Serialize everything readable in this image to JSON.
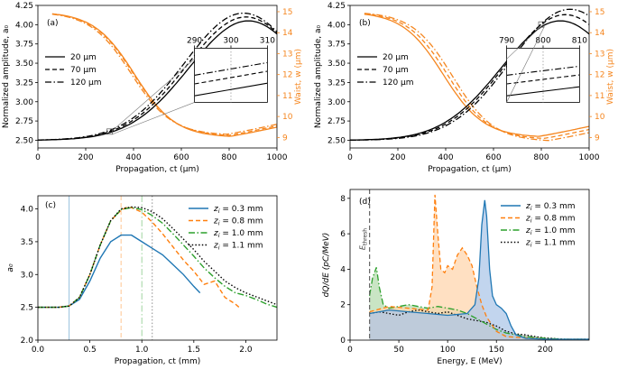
{
  "colors": {
    "black": "#000000",
    "orange": "#f5861f",
    "blue": "#1f77b4",
    "orange_c": "#ff7f0e",
    "green": "#2ca02c",
    "grey": "#555555",
    "fill_blue": "#aec7e8",
    "fill_orange": "#ffd5ad",
    "fill_green": "#b7dcb0",
    "fill_black": "#bbbbbb"
  },
  "chart_data": [
    {
      "id": "a",
      "panel_label": "(a)",
      "type": "line",
      "xlabel": "Propagation, ct (μm)",
      "ylabel_left": "Normalized amplitude, a₀",
      "ylabel_right": "Waist, w (μm)",
      "xlim": [
        0,
        1000
      ],
      "ylim_left": [
        2.4,
        4.25
      ],
      "ylim_right": [
        8.5,
        15.3
      ],
      "xticks": [
        "0",
        "200",
        "400",
        "600",
        "800",
        "1000"
      ],
      "yticks_left": [
        "2.50",
        "2.75",
        "3.00",
        "3.25",
        "3.50",
        "3.75",
        "4.00",
        "4.25"
      ],
      "yticks_right": [
        "9",
        "10",
        "11",
        "12",
        "13",
        "14",
        "15"
      ],
      "legend": [
        "20 μm",
        "70 μm",
        "120 μm"
      ],
      "legend_styles": [
        "solid",
        "dashed",
        "dashdot"
      ],
      "amplitude_params": {
        "start": 2.5,
        "peaks": [
          4.05,
          4.1,
          4.15
        ],
        "peak_x": [
          880,
          870,
          860
        ],
        "rise_width": 350
      },
      "waist_params": {
        "start": 15.0,
        "mins": [
          9.0,
          9.05,
          9.1
        ],
        "min_x": [
          805,
          800,
          790
        ],
        "width": 260
      },
      "inset": {
        "xlim": [
          290,
          310
        ],
        "xticks": [
          "290",
          "300",
          "310"
        ],
        "mark_x": 300
      }
    },
    {
      "id": "b",
      "panel_label": "(b)",
      "type": "line",
      "xlabel": "Propagation, ct (μm)",
      "ylabel_left": "Normalized amplitude, a₀",
      "ylabel_right": "Waist, w (μm)",
      "xlim": [
        0,
        1000
      ],
      "ylim_left": [
        2.4,
        4.25
      ],
      "ylim_right": [
        8.5,
        15.3
      ],
      "xticks": [
        "0",
        "200",
        "400",
        "600",
        "800",
        "1000"
      ],
      "yticks_left": [
        "2.50",
        "2.75",
        "3.00",
        "3.25",
        "3.50",
        "3.75",
        "4.00",
        "4.25"
      ],
      "yticks_right": [
        "9",
        "10",
        "11",
        "12",
        "13",
        "14",
        "15"
      ],
      "legend": [
        "20 μm",
        "70 μm",
        "120 μm"
      ],
      "legend_styles": [
        "solid",
        "dashed",
        "dashdot"
      ],
      "amplitude_params": {
        "start": 2.5,
        "peaks": [
          4.05,
          4.13,
          4.2
        ],
        "peak_x": [
          880,
          900,
          920
        ],
        "rise_width": 350
      },
      "waist_params": {
        "start": 15.0,
        "mins": [
          9.0,
          8.9,
          8.8
        ],
        "min_x": [
          790,
          810,
          830
        ],
        "width": 260
      },
      "inset": {
        "xlim": [
          790,
          810
        ],
        "xticks": [
          "790",
          "800",
          "810"
        ],
        "mark_x": 800
      }
    },
    {
      "id": "c",
      "panel_label": "(c)",
      "type": "line",
      "xlabel": "Propagation, ct (mm)",
      "ylabel": "a₀",
      "xlim": [
        0,
        2.3
      ],
      "ylim": [
        2.0,
        4.2
      ],
      "xticks": [
        "0.0",
        "0.5",
        "1.0",
        "1.5",
        "2.0"
      ],
      "yticks": [
        "2.0",
        "2.5",
        "3.0",
        "3.5",
        "4.0"
      ],
      "legend": [
        "z_i = 0.3 mm",
        "z_i = 0.8 mm",
        "z_i = 1.0 mm",
        "z_i = 1.1 mm"
      ],
      "vlines": [
        0.3,
        0.8,
        1.0,
        1.1
      ],
      "series": [
        {
          "name": "z_i = 0.3 mm",
          "style": "solid",
          "x": [
            0,
            0.2,
            0.3,
            0.4,
            0.5,
            0.6,
            0.7,
            0.8,
            0.9,
            1.0,
            1.1,
            1.2,
            1.3,
            1.4,
            1.5,
            1.56
          ],
          "y": [
            2.5,
            2.5,
            2.52,
            2.62,
            2.9,
            3.25,
            3.5,
            3.6,
            3.6,
            3.5,
            3.4,
            3.3,
            3.15,
            3.0,
            2.82,
            2.72
          ]
        },
        {
          "name": "z_i = 0.8 mm",
          "style": "dashed",
          "x": [
            0,
            0.2,
            0.3,
            0.4,
            0.5,
            0.6,
            0.7,
            0.8,
            0.85,
            0.9,
            1.0,
            1.1,
            1.2,
            1.3,
            1.4,
            1.5,
            1.6,
            1.7,
            1.8,
            1.9,
            1.95
          ],
          "y": [
            2.5,
            2.5,
            2.52,
            2.65,
            3.0,
            3.45,
            3.82,
            3.98,
            4.02,
            4.02,
            3.95,
            3.8,
            3.62,
            3.42,
            3.22,
            3.05,
            2.85,
            2.9,
            2.65,
            2.55,
            2.48
          ]
        },
        {
          "name": "z_i = 1.0 mm",
          "style": "dashdot",
          "x": [
            0,
            0.2,
            0.3,
            0.4,
            0.5,
            0.6,
            0.7,
            0.8,
            0.9,
            1.0,
            1.1,
            1.2,
            1.3,
            1.4,
            1.5,
            1.6,
            1.7,
            1.8,
            1.9,
            2.0,
            2.1,
            2.2,
            2.3
          ],
          "y": [
            2.5,
            2.5,
            2.52,
            2.65,
            3.0,
            3.45,
            3.82,
            3.99,
            4.02,
            3.99,
            3.9,
            3.78,
            3.62,
            3.45,
            3.28,
            3.1,
            2.95,
            2.82,
            2.72,
            2.68,
            2.62,
            2.55,
            2.5
          ]
        },
        {
          "name": "z_i = 1.1 mm",
          "style": "dotted",
          "x": [
            0,
            0.2,
            0.3,
            0.4,
            0.5,
            0.6,
            0.7,
            0.8,
            0.9,
            1.0,
            1.1,
            1.2,
            1.3,
            1.4,
            1.5,
            1.6,
            1.7,
            1.8,
            1.9,
            2.0,
            2.1,
            2.2,
            2.3
          ],
          "y": [
            2.5,
            2.5,
            2.52,
            2.65,
            3.0,
            3.45,
            3.82,
            4.0,
            4.03,
            4.02,
            3.96,
            3.85,
            3.7,
            3.54,
            3.38,
            3.2,
            3.05,
            2.9,
            2.8,
            2.72,
            2.66,
            2.6,
            2.54
          ]
        }
      ]
    },
    {
      "id": "d",
      "panel_label": "(d)",
      "type": "area",
      "xlabel": "Energy, E (MeV)",
      "ylabel": "dQ/dE (pC/MeV)",
      "xlim": [
        0,
        245
      ],
      "ylim": [
        0,
        8.5
      ],
      "xticks": [
        "0",
        "50",
        "100",
        "150",
        "200"
      ],
      "yticks": [
        "0",
        "2",
        "4",
        "6",
        "8"
      ],
      "threshold": {
        "x": 20,
        "label": "E_thresh"
      },
      "legend": [
        "z_i = 0.3 mm",
        "z_i = 0.8 mm",
        "z_i = 1.0 mm",
        "z_i = 1.1 mm"
      ],
      "series": [
        {
          "name": "z_i = 0.3 mm",
          "style": "solid",
          "x": [
            20,
            40,
            60,
            80,
            100,
            120,
            128,
            132,
            135,
            138,
            140,
            143,
            146,
            150,
            155,
            160,
            165,
            170,
            175,
            180,
            200,
            245
          ],
          "y": [
            1.5,
            1.7,
            1.6,
            1.5,
            1.4,
            1.5,
            2.0,
            3.5,
            6.5,
            7.9,
            7.0,
            4.0,
            2.5,
            2.0,
            1.8,
            1.5,
            0.8,
            0.3,
            0.2,
            0.1,
            0.05,
            0.05
          ]
        },
        {
          "name": "z_i = 0.8 mm",
          "style": "dashed",
          "x": [
            20,
            40,
            60,
            80,
            84,
            87,
            90,
            93,
            97,
            100,
            105,
            110,
            115,
            120,
            125,
            130,
            135,
            140,
            150,
            160,
            200,
            245
          ],
          "y": [
            1.6,
            1.9,
            1.8,
            1.7,
            3.0,
            8.2,
            6.0,
            4.0,
            3.8,
            4.2,
            4.0,
            4.8,
            5.2,
            4.8,
            4.2,
            3.0,
            2.0,
            1.3,
            0.5,
            0.2,
            0.05,
            0.05
          ]
        },
        {
          "name": "z_i = 1.0 mm",
          "style": "dashdot",
          "x": [
            20,
            23,
            27,
            30,
            34,
            40,
            50,
            60,
            70,
            80,
            90,
            100,
            110,
            120,
            130,
            140,
            150,
            160,
            180,
            200,
            220,
            245
          ],
          "y": [
            2.5,
            3.5,
            4.1,
            3.0,
            2.0,
            1.8,
            1.9,
            2.0,
            1.9,
            1.8,
            1.9,
            1.8,
            1.7,
            1.5,
            1.2,
            0.9,
            0.6,
            0.4,
            0.2,
            0.1,
            0.05,
            0.05
          ]
        },
        {
          "name": "z_i = 1.1 mm",
          "style": "dotted",
          "x": [
            20,
            30,
            40,
            50,
            60,
            70,
            80,
            90,
            100,
            110,
            120,
            130,
            140,
            150,
            160,
            170,
            180,
            190,
            200,
            220,
            245
          ],
          "y": [
            1.5,
            1.6,
            1.5,
            1.4,
            1.6,
            1.7,
            1.6,
            1.5,
            1.6,
            1.4,
            1.2,
            1.1,
            1.0,
            0.8,
            0.5,
            0.35,
            0.3,
            0.2,
            0.12,
            0.05,
            0.05
          ]
        }
      ]
    }
  ]
}
